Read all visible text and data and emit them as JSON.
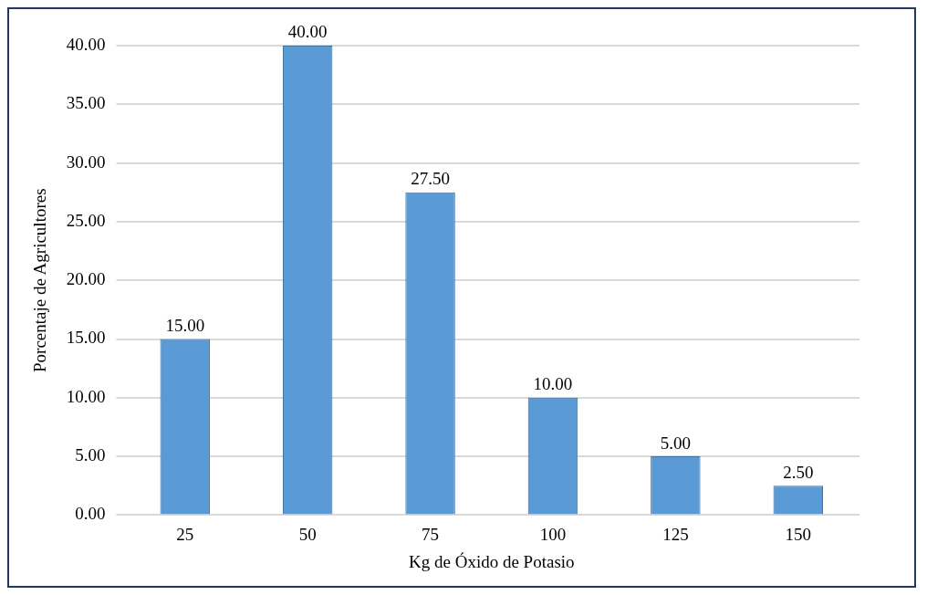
{
  "chart_data": {
    "type": "bar",
    "xlabel": "Kg de Óxido de Potasio",
    "ylabel": "Porcentaje de Agricultores",
    "categories": [
      "25",
      "50",
      "75",
      "100",
      "125",
      "150"
    ],
    "values": [
      15,
      40,
      27.5,
      10,
      5,
      2.5
    ],
    "value_labels": [
      "15.00",
      "40.00",
      "27.50",
      "10.00",
      "5.00",
      "2.50"
    ],
    "color": "#5b9bd5",
    "ylim": [
      0,
      40
    ],
    "yticks": [
      {
        "value": 0,
        "label": "0.00"
      },
      {
        "value": 5,
        "label": "5.00"
      },
      {
        "value": 10,
        "label": "10.00"
      },
      {
        "value": 15,
        "label": "15.00"
      },
      {
        "value": 20,
        "label": "20.00"
      },
      {
        "value": 25,
        "label": "25.00"
      },
      {
        "value": 30,
        "label": "30.00"
      },
      {
        "value": 35,
        "label": "35.00"
      },
      {
        "value": 40,
        "label": "40.00"
      }
    ],
    "grid": "y",
    "legend": false
  }
}
